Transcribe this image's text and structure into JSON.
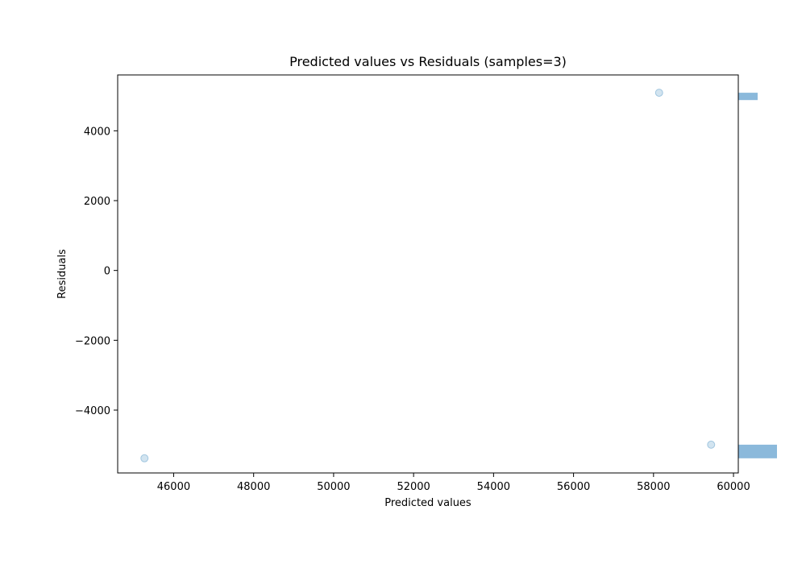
{
  "chart_data": {
    "type": "scatter",
    "title": "Predicted values vs Residuals (samples=3)",
    "xlabel": "Predicted values",
    "ylabel": "Residuals",
    "xlim": [
      44600,
      60120
    ],
    "ylim": [
      -5800,
      5600
    ],
    "x_ticks": [
      46000,
      48000,
      50000,
      52000,
      54000,
      56000,
      58000,
      60000
    ],
    "x_tick_labels": [
      "46000",
      "48000",
      "50000",
      "52000",
      "54000",
      "56000",
      "58000",
      "60000"
    ],
    "y_ticks": [
      -4000,
      -2000,
      0,
      2000,
      4000
    ],
    "y_tick_labels": [
      "−4000",
      "−2000",
      "0",
      "2000",
      "4000"
    ],
    "grid": false,
    "legend": "none",
    "points": [
      {
        "x": 45270,
        "y": -5380
      },
      {
        "x": 58140,
        "y": 5090
      },
      {
        "x": 59440,
        "y": -4990
      }
    ],
    "marginal_histogram": {
      "orientation": "horizontal",
      "position": "right",
      "bins": [
        {
          "y0": -5380,
          "y1": -4990,
          "count": 2
        },
        {
          "y0": 4880,
          "y1": 5090,
          "count": 1
        }
      ]
    },
    "point_color": "#1f77b4",
    "point_alpha": 0.2,
    "hist_color": "#8bb9db"
  }
}
